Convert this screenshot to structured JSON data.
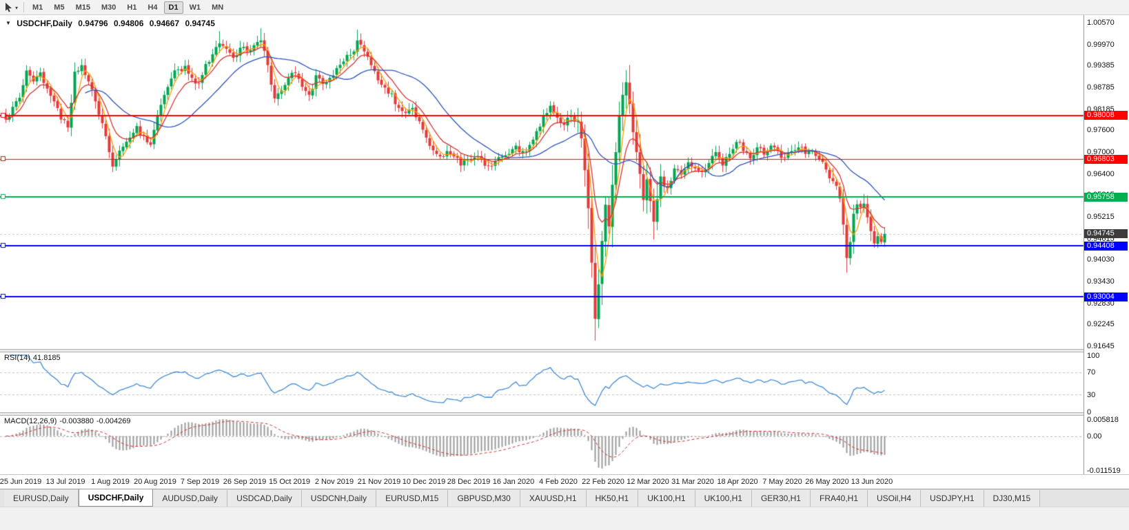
{
  "icons": {
    "collapse": "▼",
    "dropdown": "▾",
    "scroll_corner": "◥"
  },
  "toolbar": {
    "timeframes": [
      "M1",
      "M5",
      "M15",
      "M30",
      "H1",
      "H4",
      "D1",
      "W1",
      "MN"
    ],
    "active_timeframe": "D1"
  },
  "chart_header": {
    "symbol_period": "USDCHF,Daily",
    "open": "0.94796",
    "high": "0.94806",
    "low": "0.94667",
    "close": "0.94745"
  },
  "price_axis": {
    "ticks": [
      "1.00570",
      "0.99970",
      "0.99385",
      "0.98785",
      "0.98185",
      "0.97600",
      "0.97000",
      "0.96400",
      "0.95815",
      "0.95215",
      "0.94615",
      "0.94030",
      "0.93430",
      "0.92830",
      "0.92245",
      "0.91645"
    ]
  },
  "last_price_label": {
    "text": "0.94745",
    "price": 0.94745,
    "bg": "#3C3C3C"
  },
  "rsi_panel": {
    "name": "RSI(14)",
    "value": "41.8185",
    "axis_labels": [
      "100",
      "70",
      "30",
      "0"
    ],
    "levels": [
      70,
      30
    ],
    "line_color": "#4A90D9"
  },
  "macd_panel": {
    "name": "MACD(12,26,9)",
    "value_main": "-0.003880",
    "value_signal": "-0.004269",
    "axis_top": "0.005818",
    "axis_zero": "0.00",
    "axis_bottom": "-0.011519",
    "histogram_color": "#9A9A9A",
    "signal_color": "#D42A2A"
  },
  "date_axis": [
    "25 Jun 2019",
    "13 Jul 2019",
    "1 Aug 2019",
    "20 Aug 2019",
    "7 Sep 2019",
    "26 Sep 2019",
    "15 Oct 2019",
    "2 Nov 2019",
    "21 Nov 2019",
    "10 Dec 2019",
    "28 Dec 2019",
    "16 Jan 2020",
    "4 Feb 2020",
    "22 Feb 2020",
    "12 Mar 2020",
    "31 Mar 2020",
    "18 Apr 2020",
    "7 May 2020",
    "26 May 2020",
    "13 Jun 2020"
  ],
  "tabs": [
    {
      "label": "EURUSD,Daily",
      "active": false
    },
    {
      "label": "USDCHF,Daily",
      "active": true
    },
    {
      "label": "AUDUSD,Daily",
      "active": false
    },
    {
      "label": "USDCAD,Daily",
      "active": false
    },
    {
      "label": "USDCNH,Daily",
      "active": false
    },
    {
      "label": "EURUSD,M15",
      "active": false
    },
    {
      "label": "GBPUSD,M30",
      "active": false
    },
    {
      "label": "XAUUSD,H1",
      "active": false
    },
    {
      "label": "HK50,H1",
      "active": false
    },
    {
      "label": "UK100,H1",
      "active": false
    },
    {
      "label": "UK100,H1",
      "active": false
    },
    {
      "label": "GER30,H1",
      "active": false
    },
    {
      "label": "FRA40,H1",
      "active": false
    },
    {
      "label": "USOil,H4",
      "active": false
    },
    {
      "label": "USDJPY,H1",
      "active": false
    },
    {
      "label": "DJ30,M15",
      "active": false
    }
  ],
  "chart_data": {
    "type": "candlestick",
    "symbol": "USDCHF",
    "period": "Daily",
    "price_range": {
      "top": 1.0057,
      "bottom": 0.91645
    },
    "visible_candles": 256,
    "last_close": 0.94745,
    "bid_line": 0.94745,
    "up_color": "#00A651",
    "down_color": "#E33A3A",
    "hlines": [
      {
        "price": 0.98008,
        "label": "0.98008",
        "color": "#FF0000",
        "width": 2
      },
      {
        "price": 0.96803,
        "label": "0.96803",
        "color": "#FF0000",
        "width": 1
      },
      {
        "price": 0.95758,
        "label": "0.95758",
        "color": "#00B050",
        "width": 2
      },
      {
        "price": 0.94408,
        "label": "0.94408",
        "color": "#0000FF",
        "width": 2
      },
      {
        "price": 0.93004,
        "label": "0.93004",
        "color": "#0000FF",
        "width": 2
      }
    ],
    "moving_averages": [
      {
        "type": "sma",
        "period": 4,
        "color": "#FF9D00"
      },
      {
        "type": "ema",
        "period": 9,
        "color": "#D93030"
      },
      {
        "type": "sma",
        "period": 24,
        "color": "#2A52BE"
      }
    ],
    "rsi": {
      "period": 14,
      "current": 41.8185
    },
    "macd": {
      "fast": 12,
      "slow": 26,
      "signal": 9,
      "current_main": -0.00388,
      "current_signal": -0.004269
    },
    "close_keyframes": [
      [
        0,
        0.979
      ],
      [
        2,
        0.9825
      ],
      [
        4,
        0.985
      ],
      [
        6,
        0.9925
      ],
      [
        8,
        0.9895
      ],
      [
        10,
        0.992
      ],
      [
        12,
        0.9875
      ],
      [
        14,
        0.984
      ],
      [
        16,
        0.979
      ],
      [
        18,
        0.9768
      ],
      [
        20,
        0.9922
      ],
      [
        22,
        0.994
      ],
      [
        24,
        0.9895
      ],
      [
        26,
        0.984
      ],
      [
        28,
        0.978
      ],
      [
        30,
        0.97
      ],
      [
        31,
        0.966
      ],
      [
        32,
        0.968
      ],
      [
        34,
        0.9715
      ],
      [
        36,
        0.974
      ],
      [
        38,
        0.9772
      ],
      [
        40,
        0.9745
      ],
      [
        42,
        0.972
      ],
      [
        44,
        0.98
      ],
      [
        46,
        0.9858
      ],
      [
        48,
        0.9903
      ],
      [
        50,
        0.9928
      ],
      [
        52,
        0.9938
      ],
      [
        54,
        0.9905
      ],
      [
        56,
        0.989
      ],
      [
        58,
        0.9943
      ],
      [
        60,
        0.997
      ],
      [
        62,
        1.0
      ],
      [
        64,
        0.9985
      ],
      [
        66,
        0.996
      ],
      [
        68,
        0.9988
      ],
      [
        70,
        0.9978
      ],
      [
        72,
        0.9995
      ],
      [
        74,
        1.0008
      ],
      [
        76,
        0.994
      ],
      [
        78,
        0.9848
      ],
      [
        80,
        0.987
      ],
      [
        82,
        0.9905
      ],
      [
        84,
        0.9918
      ],
      [
        86,
        0.988
      ],
      [
        88,
        0.9858
      ],
      [
        90,
        0.9912
      ],
      [
        92,
        0.9888
      ],
      [
        94,
        0.9905
      ],
      [
        96,
        0.9932
      ],
      [
        98,
        0.995
      ],
      [
        100,
        0.9968
      ],
      [
        102,
        1.0008
      ],
      [
        104,
        0.9978
      ],
      [
        106,
        0.994
      ],
      [
        108,
        0.9898
      ],
      [
        110,
        0.9878
      ],
      [
        112,
        0.9862
      ],
      [
        114,
        0.9822
      ],
      [
        116,
        0.9808
      ],
      [
        118,
        0.9822
      ],
      [
        120,
        0.9785
      ],
      [
        122,
        0.974
      ],
      [
        124,
        0.9705
      ],
      [
        126,
        0.9688
      ],
      [
        128,
        0.9703
      ],
      [
        130,
        0.9688
      ],
      [
        132,
        0.9663
      ],
      [
        134,
        0.9678
      ],
      [
        136,
        0.9685
      ],
      [
        138,
        0.968
      ],
      [
        140,
        0.9663
      ],
      [
        142,
        0.9676
      ],
      [
        144,
        0.9688
      ],
      [
        146,
        0.9695
      ],
      [
        148,
        0.9718
      ],
      [
        150,
        0.9703
      ],
      [
        152,
        0.972
      ],
      [
        154,
        0.9758
      ],
      [
        156,
        0.98
      ],
      [
        158,
        0.9828
      ],
      [
        160,
        0.9795
      ],
      [
        162,
        0.9775
      ],
      [
        164,
        0.98
      ],
      [
        166,
        0.9785
      ],
      [
        167,
        0.9738
      ],
      [
        168,
        0.965
      ],
      [
        169,
        0.9545
      ],
      [
        170,
        0.9395
      ],
      [
        171,
        0.924
      ],
      [
        172,
        0.9335
      ],
      [
        173,
        0.9455
      ],
      [
        174,
        0.9555
      ],
      [
        175,
        0.9495
      ],
      [
        176,
        0.961
      ],
      [
        177,
        0.97
      ],
      [
        178,
        0.98
      ],
      [
        179,
        0.9858
      ],
      [
        180,
        0.9893
      ],
      [
        181,
        0.9833
      ],
      [
        182,
        0.9755
      ],
      [
        183,
        0.97
      ],
      [
        184,
        0.964
      ],
      [
        185,
        0.9568
      ],
      [
        186,
        0.9625
      ],
      [
        187,
        0.9565
      ],
      [
        188,
        0.9508
      ],
      [
        189,
        0.957
      ],
      [
        190,
        0.9633
      ],
      [
        192,
        0.96
      ],
      [
        194,
        0.9655
      ],
      [
        196,
        0.9638
      ],
      [
        198,
        0.9672
      ],
      [
        200,
        0.9655
      ],
      [
        202,
        0.9645
      ],
      [
        204,
        0.967
      ],
      [
        206,
        0.97
      ],
      [
        208,
        0.9663
      ],
      [
        210,
        0.9695
      ],
      [
        212,
        0.9728
      ],
      [
        214,
        0.9703
      ],
      [
        216,
        0.9683
      ],
      [
        218,
        0.9713
      ],
      [
        220,
        0.9693
      ],
      [
        222,
        0.9718
      ],
      [
        224,
        0.9703
      ],
      [
        226,
        0.9685
      ],
      [
        228,
        0.9703
      ],
      [
        230,
        0.9713
      ],
      [
        232,
        0.9695
      ],
      [
        234,
        0.9703
      ],
      [
        236,
        0.968
      ],
      [
        238,
        0.9652
      ],
      [
        240,
        0.962
      ],
      [
        242,
        0.9572
      ],
      [
        243,
        0.95
      ],
      [
        244,
        0.9408
      ],
      [
        245,
        0.9452
      ],
      [
        246,
        0.953
      ],
      [
        247,
        0.9556
      ],
      [
        248,
        0.9548
      ],
      [
        249,
        0.9558
      ],
      [
        250,
        0.952
      ],
      [
        251,
        0.9482
      ],
      [
        252,
        0.9448
      ],
      [
        253,
        0.9468
      ],
      [
        254,
        0.9452
      ],
      [
        255,
        0.94745
      ]
    ],
    "high_overrides": [
      [
        62,
        1.0034
      ],
      [
        74,
        1.0042
      ],
      [
        102,
        1.0038
      ],
      [
        180,
        0.9912
      ]
    ],
    "low_overrides": [
      [
        31,
        0.9645
      ],
      [
        171,
        0.918
      ],
      [
        244,
        0.9367
      ]
    ]
  }
}
